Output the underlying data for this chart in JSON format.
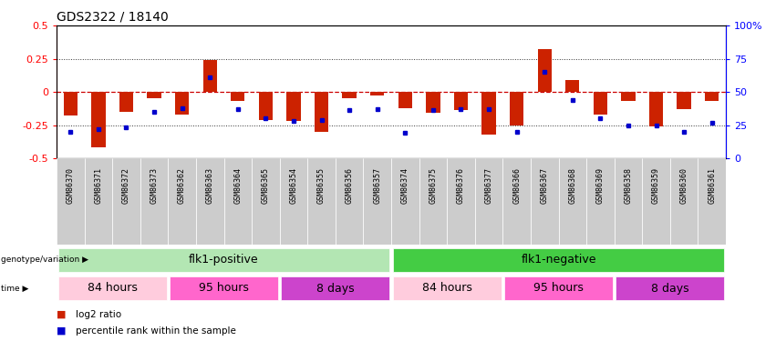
{
  "title": "GDS2322 / 18140",
  "samples": [
    "GSM86370",
    "GSM86371",
    "GSM86372",
    "GSM86373",
    "GSM86362",
    "GSM86363",
    "GSM86364",
    "GSM86365",
    "GSM86354",
    "GSM86355",
    "GSM86356",
    "GSM86357",
    "GSM86374",
    "GSM86375",
    "GSM86376",
    "GSM86377",
    "GSM86366",
    "GSM86367",
    "GSM86368",
    "GSM86369",
    "GSM86358",
    "GSM86359",
    "GSM86360",
    "GSM86361"
  ],
  "log2_ratio": [
    -0.18,
    -0.42,
    -0.15,
    -0.05,
    -0.17,
    0.24,
    -0.07,
    -0.21,
    -0.22,
    -0.3,
    -0.05,
    -0.03,
    -0.12,
    -0.16,
    -0.14,
    -0.32,
    -0.25,
    0.32,
    0.09,
    -0.17,
    -0.07,
    -0.26,
    -0.13,
    -0.07
  ],
  "percentile": [
    20,
    22,
    23,
    35,
    38,
    61,
    37,
    30,
    28,
    29,
    36,
    37,
    19,
    36,
    37,
    37,
    20,
    65,
    44,
    30,
    25,
    25,
    20,
    27
  ],
  "genotype_groups": [
    {
      "label": "flk1-positive",
      "start": 0,
      "end": 12,
      "color": "#b3e6b3"
    },
    {
      "label": "flk1-negative",
      "start": 12,
      "end": 24,
      "color": "#44cc44"
    }
  ],
  "time_groups": [
    {
      "label": "84 hours",
      "start": 0,
      "end": 4,
      "color": "#ffccdd"
    },
    {
      "label": "95 hours",
      "start": 4,
      "end": 8,
      "color": "#ff66cc"
    },
    {
      "label": "8 days",
      "start": 8,
      "end": 12,
      "color": "#cc44cc"
    },
    {
      "label": "84 hours",
      "start": 12,
      "end": 16,
      "color": "#ffccdd"
    },
    {
      "label": "95 hours",
      "start": 16,
      "end": 20,
      "color": "#ff66cc"
    },
    {
      "label": "8 days",
      "start": 20,
      "end": 24,
      "color": "#cc44cc"
    }
  ],
  "bar_color": "#cc2200",
  "dot_color": "#0000cc",
  "zero_line_color": "#cc0000",
  "hline_color": "#333333",
  "yticks_left": [
    -0.5,
    -0.25,
    0,
    0.25,
    0.5
  ],
  "yticks_right_pct": [
    0,
    25,
    50,
    75,
    100
  ],
  "ylim_lo": -0.5,
  "ylim_hi": 0.5,
  "plot_bg": "#ffffff",
  "label_bg": "#cccccc"
}
